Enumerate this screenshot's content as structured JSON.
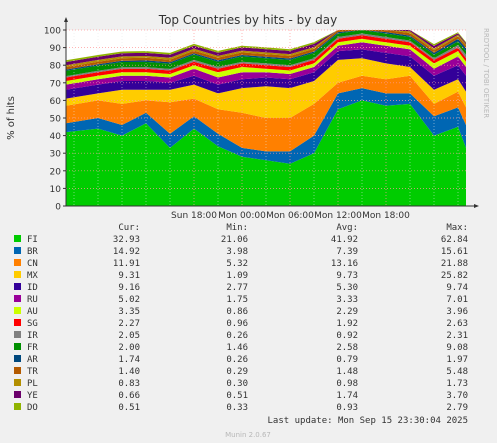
{
  "chart_data": {
    "type": "area",
    "title": "Top Countries by hits - by day",
    "ylabel": "% of hits",
    "side_label": "RRDTOOL / TOBI OETIKER",
    "ylim": [
      0,
      100
    ],
    "y_ticks": [
      0,
      10,
      20,
      30,
      40,
      50,
      60,
      70,
      80,
      90,
      100
    ],
    "x_ticks": [
      "Sun 18:00",
      "Mon 00:00",
      "Mon 06:00",
      "Mon 12:00",
      "Mon 18:00"
    ],
    "grid": true,
    "x_hours": [
      -22,
      -18,
      -15,
      -12,
      -9,
      -6,
      -3,
      0,
      3,
      6,
      9,
      12,
      15,
      18,
      21,
      24,
      27,
      28
    ],
    "series": [
      {
        "name": "FI",
        "color": "#00cc00",
        "cur": "32.93",
        "min": "21.06",
        "avg": "41.92",
        "max": "62.84",
        "values": [
          42,
          44,
          40,
          47,
          33,
          44,
          34,
          28,
          26,
          24,
          30,
          55,
          60,
          57,
          58,
          40,
          45,
          33
        ]
      },
      {
        "name": "BR",
        "color": "#0066b3",
        "cur": "14.92",
        "min": "3.98",
        "avg": "7.39",
        "max": "15.61",
        "values": [
          5,
          6,
          6,
          6,
          8,
          7,
          7,
          5,
          5,
          7,
          10,
          9,
          7,
          7,
          6,
          11,
          11,
          13
        ]
      },
      {
        "name": "CN",
        "color": "#ff8000",
        "cur": "11.91",
        "min": "5.32",
        "avg": "13.16",
        "max": "21.88",
        "values": [
          10,
          10,
          12,
          7,
          18,
          10,
          14,
          20,
          19,
          19,
          18,
          6,
          7,
          8,
          10,
          7,
          9,
          10
        ]
      },
      {
        "name": "MX",
        "color": "#ffcc00",
        "cur": "9.31",
        "min": "1.09",
        "avg": "9.73",
        "max": "25.82",
        "values": [
          4,
          4,
          8,
          6,
          7,
          8,
          9,
          14,
          18,
          17,
          13,
          13,
          10,
          9,
          5,
          8,
          7,
          9
        ]
      },
      {
        "name": "ID",
        "color": "#330099",
        "cur": "9.16",
        "min": "2.77",
        "avg": "5.30",
        "max": "9.74",
        "values": [
          5,
          5,
          5,
          5,
          4,
          5,
          5,
          5,
          5,
          5,
          5,
          5,
          5,
          6,
          6,
          8,
          8,
          9
        ]
      },
      {
        "name": "RU",
        "color": "#990099",
        "cur": "5.02",
        "min": "1.75",
        "avg": "3.33",
        "max": "7.01",
        "values": [
          3,
          3,
          3,
          3,
          3,
          4,
          4,
          4,
          3,
          3,
          3,
          3,
          4,
          4,
          4,
          4,
          5,
          5
        ]
      },
      {
        "name": "AU",
        "color": "#ccff00",
        "cur": "3.35",
        "min": "0.86",
        "avg": "2.29",
        "max": "3.96",
        "values": [
          2,
          2,
          2,
          2,
          2,
          2,
          3,
          3,
          2,
          2,
          2,
          2,
          2,
          2,
          2,
          3,
          3,
          3
        ]
      },
      {
        "name": "SG",
        "color": "#ff0000",
        "cur": "2.27",
        "min": "0.96",
        "avg": "1.92",
        "max": "2.63",
        "values": [
          2,
          2,
          2,
          2,
          2,
          2,
          2,
          2,
          2,
          2,
          2,
          2,
          2,
          2,
          2,
          2,
          2,
          2
        ]
      },
      {
        "name": "IR",
        "color": "#808080",
        "cur": "2.05",
        "min": "0.26",
        "avg": "0.92",
        "max": "2.31",
        "values": [
          0.8,
          0.8,
          0.8,
          0.9,
          0.9,
          1,
          1,
          1,
          1,
          1,
          1,
          1,
          1,
          1,
          1,
          1,
          1.5,
          2
        ]
      },
      {
        "name": "FR",
        "color": "#008f00",
        "cur": "2.00",
        "min": "1.46",
        "avg": "2.58",
        "max": "9.08",
        "values": [
          3,
          3,
          3,
          3,
          3,
          3,
          3,
          3,
          3,
          3,
          3,
          2,
          2,
          2,
          2,
          2,
          2,
          2
        ]
      },
      {
        "name": "AR",
        "color": "#00487d",
        "cur": "1.74",
        "min": "0.26",
        "avg": "0.79",
        "max": "1.97",
        "values": [
          0.7,
          0.7,
          0.7,
          0.8,
          0.8,
          0.8,
          0.8,
          0.8,
          0.8,
          0.8,
          0.8,
          0.8,
          0.8,
          0.8,
          0.8,
          1,
          1.5,
          1.7
        ]
      },
      {
        "name": "TR",
        "color": "#b35a00",
        "cur": "1.40",
        "min": "0.29",
        "avg": "1.48",
        "max": "5.48",
        "values": [
          1.5,
          1.5,
          1.5,
          1.5,
          1.5,
          1.5,
          1.5,
          1.5,
          1.5,
          1.5,
          1.5,
          1.5,
          1.5,
          1.5,
          1.5,
          1.5,
          1.4,
          1.4
        ]
      },
      {
        "name": "PL",
        "color": "#b38f00",
        "cur": "0.83",
        "min": "0.30",
        "avg": "0.98",
        "max": "1.73",
        "values": [
          1,
          1,
          1,
          1,
          1,
          1,
          1,
          1,
          1,
          1,
          1,
          1,
          1,
          1,
          1,
          1,
          0.9,
          0.8
        ]
      },
      {
        "name": "YE",
        "color": "#6b006b",
        "cur": "0.66",
        "min": "0.51",
        "avg": "1.74",
        "max": "3.70",
        "values": [
          1.8,
          1.8,
          1.8,
          1.8,
          1.8,
          1.8,
          1.8,
          1.8,
          1.8,
          1.8,
          1.8,
          1.8,
          1.8,
          1.8,
          1.8,
          1.5,
          0.8,
          0.7
        ]
      },
      {
        "name": "DO",
        "color": "#8fb300",
        "cur": "0.51",
        "min": "0.33",
        "avg": "0.93",
        "max": "2.79",
        "values": [
          1,
          1,
          1,
          1,
          1,
          1,
          1,
          1,
          1,
          1,
          1,
          1,
          1,
          1,
          1,
          1,
          0.6,
          0.5
        ]
      }
    ]
  },
  "legend_headers": {
    "cur": "Cur:",
    "min": "Min:",
    "avg": "Avg:",
    "max": "Max:"
  },
  "last_update": "Last update: Mon Sep 15 23:30:04 2025",
  "footer": "Munin 2.0.67"
}
